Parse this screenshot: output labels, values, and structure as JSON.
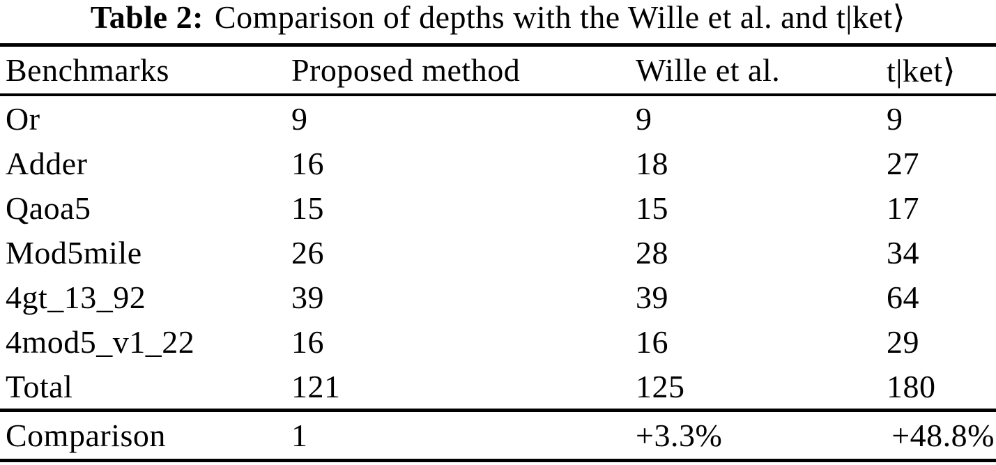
{
  "caption": {
    "label": "Table 2:",
    "text": "Comparison of depths with the Wille et al. and t|ket⟩"
  },
  "table": {
    "columns": [
      "Benchmarks",
      "Proposed method",
      "Wille et al.",
      "t|ket⟩"
    ],
    "rows": [
      {
        "cells": [
          "Or",
          "9",
          "9",
          "9"
        ]
      },
      {
        "cells": [
          "Adder",
          "16",
          "18",
          "27"
        ]
      },
      {
        "cells": [
          "Qaoa5",
          "15",
          "15",
          "17"
        ]
      },
      {
        "cells": [
          "Mod5mile",
          "26",
          "28",
          "34"
        ]
      },
      {
        "cells": [
          "4gt_13_92",
          "39",
          "39",
          "64"
        ]
      },
      {
        "cells": [
          "4mod5_v1_22",
          "16",
          "16",
          "29"
        ]
      },
      {
        "cells": [
          "Total",
          "121",
          "125",
          "180"
        ]
      }
    ],
    "comparison_row": {
      "cells": [
        "Comparison",
        "1",
        "+3.3%",
        "+48.8%"
      ]
    }
  },
  "colors": {
    "text": "#000000",
    "background": "#ffffff",
    "rule": "#000000"
  }
}
